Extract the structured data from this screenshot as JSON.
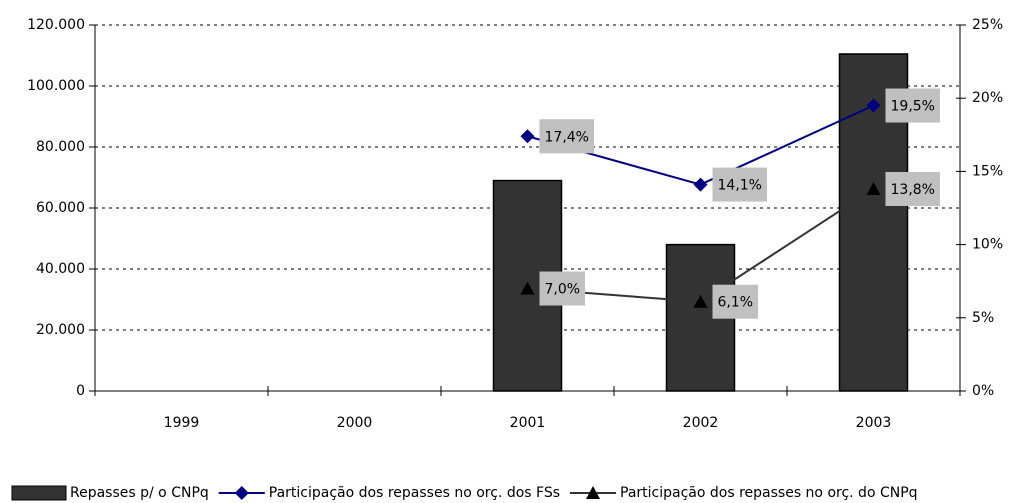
{
  "chart_data": {
    "type": "bar",
    "categories": [
      "1999",
      "2000",
      "2001",
      "2002",
      "2003"
    ],
    "series": [
      {
        "name": "Repasses p/ o CNPq",
        "type": "bar",
        "color": "#333333",
        "values": [
          null,
          null,
          69000,
          48000,
          110500
        ]
      },
      {
        "name": "Participação dos repasses no orç. dos FSs",
        "type": "line",
        "marker": "diamond",
        "axis": "y2",
        "color": "#000080",
        "values": [
          null,
          null,
          17.4,
          14.1,
          19.5
        ],
        "value_labels": [
          null,
          null,
          "17,4%",
          "14,1%",
          "19,5%"
        ]
      },
      {
        "name": "Participação dos repasses no orç. do CNPq",
        "type": "line",
        "marker": "triangle",
        "axis": "y2",
        "color": "#333333",
        "values": [
          null,
          null,
          7.0,
          6.1,
          13.8
        ],
        "value_labels": [
          null,
          null,
          "7,0%",
          "6,1%",
          "13,8%"
        ]
      }
    ],
    "ylim": [
      0,
      120000
    ],
    "yticks": [
      0,
      {
        "value": 20000,
        "label": "20.000"
      },
      {
        "value": 40000,
        "label": "40.000"
      },
      {
        "value": 60000,
        "label": "60.000"
      },
      {
        "value": 80000,
        "label": "80.000"
      },
      {
        "value": 100000,
        "label": "100.000"
      },
      {
        "value": 120000,
        "label": "120.000"
      }
    ],
    "y2lim": [
      0,
      25
    ],
    "y2ticks": [
      {
        "value": 0,
        "label": "0%"
      },
      {
        "value": 5,
        "label": "5%"
      },
      {
        "value": 10,
        "label": "10%"
      },
      {
        "value": 15,
        "label": "15%"
      },
      {
        "value": 20,
        "label": "20%"
      },
      {
        "value": 25,
        "label": "25%"
      }
    ],
    "grid": true,
    "legend": "bottom"
  }
}
